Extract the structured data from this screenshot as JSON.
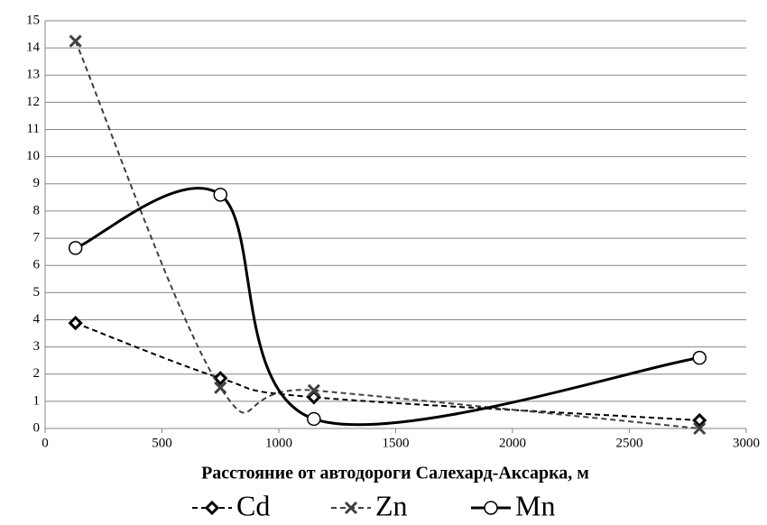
{
  "chart_data": {
    "type": "scatter-smooth",
    "x_label": "Расстояние от автодороги Салехард-Аксарка, м",
    "x": [
      130,
      750,
      1150,
      2800
    ],
    "series": [
      {
        "name": "Cd",
        "color": "#000000",
        "line_style": "dashed",
        "marker": "diamond",
        "values": [
          3.88,
          1.85,
          1.15,
          0.3
        ]
      },
      {
        "name": "Zn",
        "color": "#404040",
        "line_style": "dashed",
        "marker": "x",
        "values": [
          14.25,
          1.5,
          1.4,
          0
        ]
      },
      {
        "name": "Mn",
        "color": "#000000",
        "line_style": "solid",
        "marker": "circle",
        "values": [
          6.64,
          8.6,
          0.35,
          2.6
        ]
      }
    ],
    "xlim": [
      0,
      3000
    ],
    "xticks": [
      0,
      500,
      1000,
      1500,
      2000,
      2500,
      3000
    ],
    "ylim": [
      0,
      15
    ],
    "yticks": [
      0,
      1,
      2,
      3,
      4,
      5,
      6,
      7,
      8,
      9,
      10,
      11,
      12,
      13,
      14,
      15
    ],
    "grid": true,
    "legend": "bottom"
  }
}
